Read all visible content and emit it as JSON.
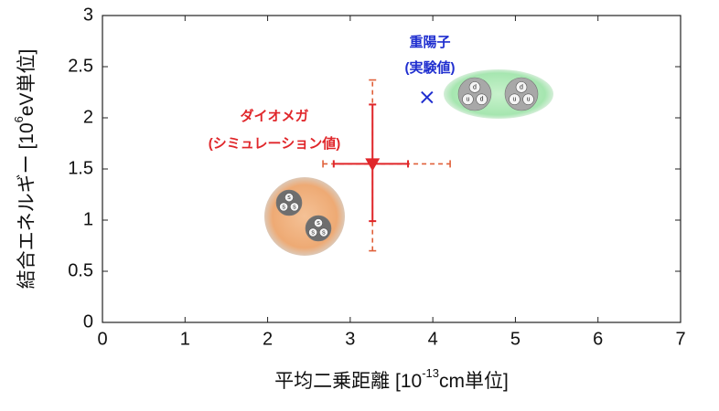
{
  "chart_data": {
    "type": "scatter",
    "xlabel_parts": [
      "平均二乗距離 [10",
      "-13",
      "cm単位]"
    ],
    "ylabel_parts": [
      "結合エネルギー [10",
      "6",
      "eV単位]"
    ],
    "xlim": [
      0,
      7
    ],
    "xticks": [
      0,
      1,
      2,
      3,
      4,
      5,
      6,
      7
    ],
    "ylim": [
      0,
      3
    ],
    "yticks": [
      0,
      0.5,
      1,
      1.5,
      2,
      2.5,
      3
    ],
    "series": [
      {
        "name": "ダイオメガ",
        "note": "(シミュレーション値)",
        "color": "#e0262a",
        "marker": "triangle-down",
        "x": [
          3.27
        ],
        "values": [
          1.55
        ],
        "x_range_solid": [
          2.8,
          3.7
        ],
        "x_range_dashed": [
          2.67,
          4.21
        ],
        "y_range_solid": [
          0.99,
          2.13
        ],
        "y_range_dashed": [
          0.7,
          2.37
        ],
        "quarks": [
          [
            "s",
            "s",
            "s"
          ],
          [
            "s",
            "s",
            "s"
          ]
        ]
      },
      {
        "name": "重陽子",
        "note": "(実験値)",
        "color": "#1f2ecf",
        "marker": "x",
        "x": [
          3.93
        ],
        "values": [
          2.2
        ],
        "quarks": [
          [
            "d",
            "u",
            "d"
          ],
          [
            "d",
            "u",
            "u"
          ]
        ]
      }
    ]
  }
}
